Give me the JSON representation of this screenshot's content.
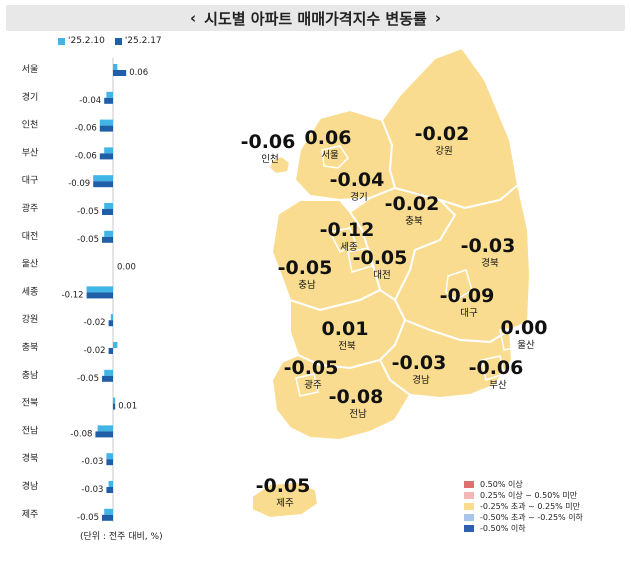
{
  "title": "시도별 아파트 매매가격지수 변동률",
  "title_left_icon": "chevron-left-icon",
  "title_right_icon": "chevron-right-icon",
  "chart_data": {
    "type": "bar",
    "orientation": "horizontal",
    "categories": [
      "서울",
      "경기",
      "인천",
      "부산",
      "대구",
      "광주",
      "대전",
      "울산",
      "세종",
      "강원",
      "충북",
      "충남",
      "전북",
      "전남",
      "경북",
      "경남",
      "제주"
    ],
    "series": [
      {
        "name": "'25.2.10",
        "color": "#41b6e6",
        "values": [
          0.02,
          -0.03,
          -0.06,
          -0.04,
          -0.09,
          -0.04,
          -0.04,
          0.0,
          -0.12,
          -0.01,
          0.02,
          -0.04,
          0.01,
          -0.07,
          -0.03,
          -0.02,
          -0.04
        ]
      },
      {
        "name": "'25.2.17",
        "color": "#1f5fa8",
        "values": [
          0.06,
          -0.04,
          -0.06,
          -0.06,
          -0.09,
          -0.05,
          -0.05,
          0.0,
          -0.12,
          -0.02,
          -0.02,
          -0.05,
          0.01,
          -0.08,
          -0.03,
          -0.03,
          -0.05
        ]
      }
    ],
    "value_labels": [
      "0.06",
      "-0.04",
      "-0.06",
      "-0.06",
      "-0.09",
      "-0.05",
      "-0.05",
      "0.00",
      "-0.12",
      "-0.02",
      "-0.02",
      "-0.05",
      "0.01",
      "-0.08",
      "-0.03",
      "-0.03",
      "-0.05"
    ],
    "xlim": [
      -0.12,
      0.12
    ]
  },
  "unit_note": "(단위 : 전주 대비, %)",
  "map": {
    "fill_color": "#f9dc8f",
    "regions": [
      {
        "name": "인천",
        "value": "-0.06"
      },
      {
        "name": "서울",
        "value": "0.06"
      },
      {
        "name": "경기",
        "value": "-0.04"
      },
      {
        "name": "강원",
        "value": "-0.02"
      },
      {
        "name": "충북",
        "value": "-0.02"
      },
      {
        "name": "세종",
        "value": "-0.12"
      },
      {
        "name": "대전",
        "value": "-0.05"
      },
      {
        "name": "충남",
        "value": "-0.05"
      },
      {
        "name": "경북",
        "value": "-0.03"
      },
      {
        "name": "대구",
        "value": "-0.09"
      },
      {
        "name": "전북",
        "value": "0.01"
      },
      {
        "name": "울산",
        "value": "0.00"
      },
      {
        "name": "광주",
        "value": "-0.05"
      },
      {
        "name": "경남",
        "value": "-0.03"
      },
      {
        "name": "부산",
        "value": "-0.06"
      },
      {
        "name": "전남",
        "value": "-0.08"
      },
      {
        "name": "제주",
        "value": "-0.05"
      }
    ]
  },
  "legend": [
    {
      "label": "0.50% 이상",
      "color": "#e07070"
    },
    {
      "label": "0.25% 이상 ~ 0.50% 미만",
      "color": "#f2b7b7"
    },
    {
      "label": "-0.25% 초과 ~ 0.25% 미만",
      "color": "#f9dc8f"
    },
    {
      "label": "-0.50% 초과 ~ -0.25% 이하",
      "color": "#a9c4e8"
    },
    {
      "label": "-0.50% 이하",
      "color": "#2f5fae"
    }
  ]
}
